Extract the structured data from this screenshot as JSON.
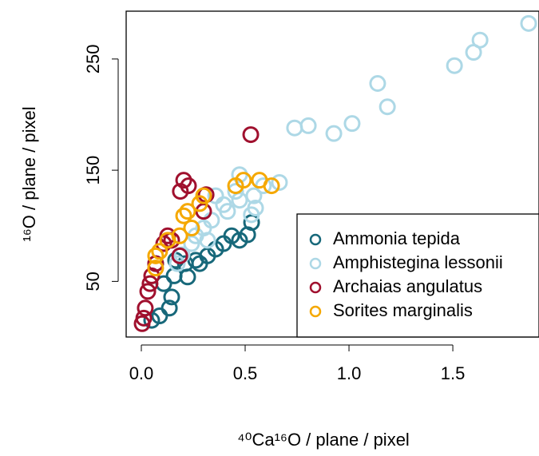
{
  "chart_data": {
    "type": "scatter",
    "xlabel": "⁴⁰Ca¹⁶O / plane / pixel",
    "ylabel": "¹⁶O / plane / pixel",
    "xlim": [
      -0.073,
      1.915
    ],
    "ylim": [
      0,
      293
    ],
    "xticks": [
      {
        "value": 0,
        "label": "0.0"
      },
      0.5,
      {
        "value": 1,
        "label": "1.0"
      },
      1.5
    ],
    "yticks": [
      50,
      150,
      250
    ],
    "legend": "bottom-right",
    "series": [
      {
        "name": "Ammonia tepida",
        "color": "#17687a",
        "x": [
          0.531,
          0.512,
          0.435,
          0.396,
          0.358,
          0.319,
          0.262,
          0.212,
          0.223,
          0.158,
          0.165,
          0.108,
          0.146,
          0.135,
          0.088,
          0.05,
          0.069,
          0.281,
          0.473
        ],
        "values": [
          103,
          92,
          91,
          84,
          79,
          73,
          69,
          66,
          54,
          55,
          69,
          48,
          36,
          26,
          19,
          15,
          66,
          66,
          87
        ]
      },
      {
        "name": "Amphistegina lessonii",
        "color": "#add8e6",
        "x": [
          1.865,
          1.631,
          1.6,
          1.508,
          1.138,
          1.185,
          1.015,
          0.927,
          0.804,
          0.738,
          0.665,
          0.588,
          0.473,
          0.542,
          0.55,
          0.53,
          0.473,
          0.396,
          0.415,
          0.338,
          0.3,
          0.262,
          0.242,
          0.196,
          0.173,
          0.358,
          0.454,
          0.319
        ],
        "values": [
          282,
          267,
          256,
          244,
          228,
          207,
          192,
          183,
          190,
          188,
          139,
          136,
          146,
          127,
          116,
          110,
          123,
          119,
          113,
          105,
          98,
          91,
          84,
          74,
          66,
          127,
          131,
          87
        ]
      },
      {
        "name": "Archaias angulatus",
        "color": "#a0102e",
        "x": [
          0.527,
          0.204,
          0.227,
          0.188,
          0.312,
          0.3,
          0.127,
          0.146,
          0.108,
          0.185,
          0.069,
          0.05,
          0.042,
          0.031,
          0.019,
          0.012,
          0.004
        ],
        "values": [
          182,
          141,
          136,
          131,
          128,
          113,
          91,
          87,
          84,
          73,
          66,
          55,
          48,
          41,
          26,
          17,
          12
        ]
      },
      {
        "name": "Sorites marginalis",
        "color": "#f5a800",
        "x": [
          0.492,
          0.569,
          0.627,
          0.454,
          0.3,
          0.281,
          0.223,
          0.204,
          0.242,
          0.185,
          0.088,
          0.069,
          0.069,
          0.127
        ],
        "values": [
          141,
          141,
          136,
          136,
          127,
          120,
          113,
          109,
          98,
          91,
          77,
          73,
          62,
          87
        ]
      }
    ]
  }
}
